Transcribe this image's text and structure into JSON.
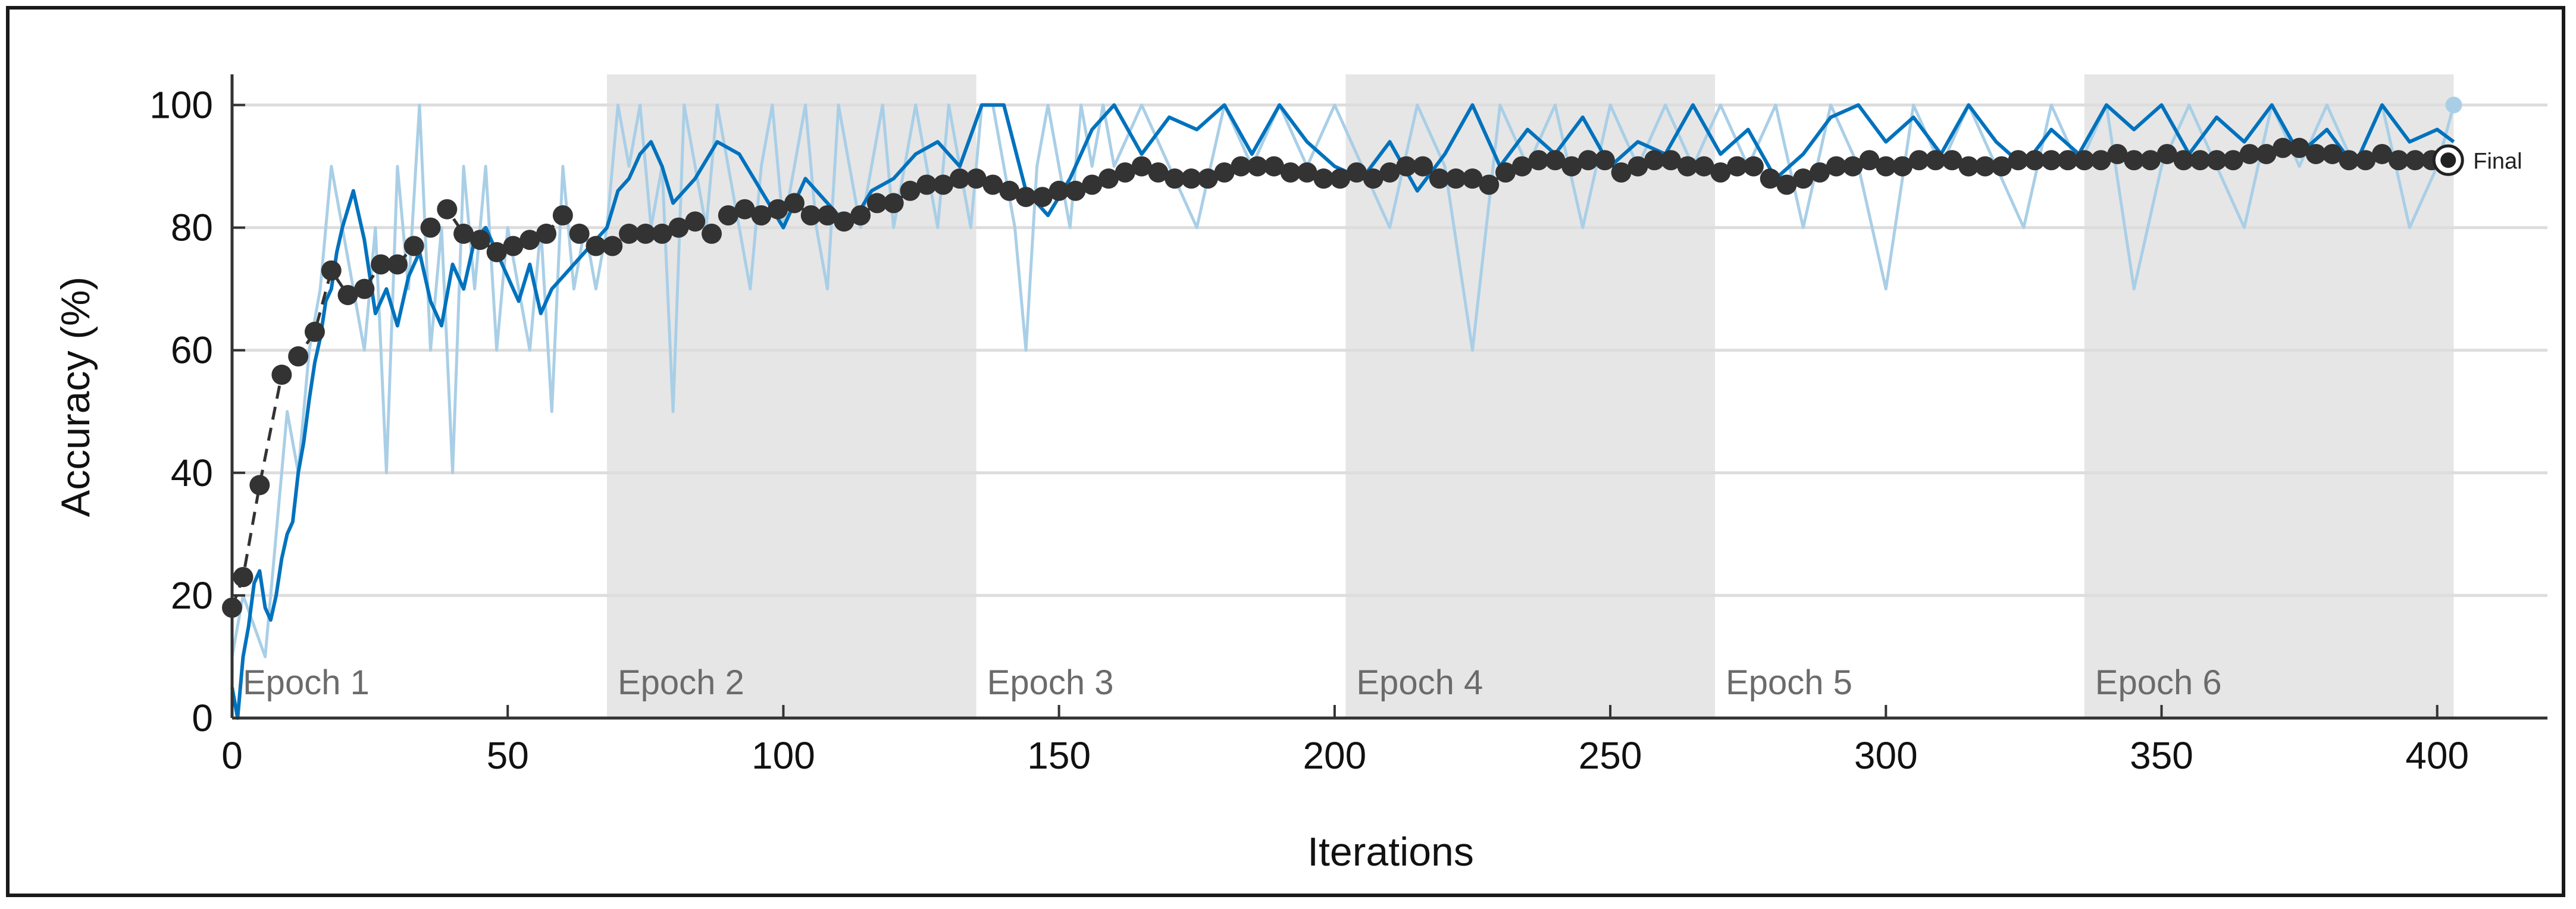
{
  "chart_data": {
    "type": "line",
    "xlabel": "Iterations",
    "ylabel": "Accuracy (%)",
    "xlim": [
      0,
      420
    ],
    "ylim": [
      0,
      105
    ],
    "xticks": [
      0,
      50,
      100,
      150,
      200,
      250,
      300,
      350,
      400
    ],
    "yticks": [
      0,
      20,
      40,
      60,
      80,
      100
    ],
    "grid": "horizontal",
    "epochs": [
      {
        "label": "Epoch 1",
        "start": 0,
        "end": 68,
        "shaded": false
      },
      {
        "label": "Epoch 2",
        "start": 68,
        "end": 135,
        "shaded": true
      },
      {
        "label": "Epoch 3",
        "start": 135,
        "end": 202,
        "shaded": false
      },
      {
        "label": "Epoch 4",
        "start": 202,
        "end": 269,
        "shaded": true
      },
      {
        "label": "Epoch 5",
        "start": 269,
        "end": 336,
        "shaded": false
      },
      {
        "label": "Epoch 6",
        "start": 336,
        "end": 403,
        "shaded": true
      }
    ],
    "final_label": "Final",
    "series": [
      {
        "role": "training-accuracy-raw",
        "color": "#a9cfe6",
        "x": [
          0,
          2,
          4,
          6,
          8,
          10,
          12,
          14,
          16,
          18,
          20,
          22,
          24,
          26,
          28,
          30,
          32,
          34,
          36,
          38,
          40,
          42,
          44,
          46,
          48,
          50,
          52,
          54,
          56,
          58,
          60,
          62,
          64,
          66,
          68,
          70,
          72,
          74,
          76,
          78,
          80,
          82,
          84,
          86,
          88,
          90,
          92,
          94,
          96,
          98,
          100,
          102,
          104,
          106,
          108,
          110,
          112,
          114,
          116,
          118,
          120,
          122,
          124,
          126,
          128,
          130,
          132,
          134,
          136,
          138,
          140,
          142,
          144,
          146,
          148,
          150,
          152,
          154,
          156,
          158,
          160,
          165,
          170,
          175,
          180,
          185,
          190,
          195,
          200,
          205,
          210,
          215,
          220,
          225,
          230,
          235,
          240,
          245,
          250,
          255,
          260,
          265,
          270,
          275,
          280,
          285,
          290,
          295,
          300,
          305,
          310,
          315,
          320,
          325,
          330,
          335,
          340,
          345,
          350,
          355,
          360,
          365,
          370,
          375,
          380,
          385,
          390,
          395,
          400,
          403
        ],
        "y": [
          10,
          20,
          15,
          10,
          30,
          50,
          40,
          60,
          70,
          90,
          80,
          70,
          60,
          80,
          40,
          90,
          70,
          100,
          60,
          80,
          40,
          90,
          70,
          90,
          60,
          80,
          70,
          60,
          80,
          50,
          90,
          70,
          80,
          70,
          80,
          100,
          90,
          100,
          80,
          90,
          50,
          100,
          90,
          80,
          100,
          90,
          80,
          70,
          90,
          100,
          80,
          90,
          100,
          80,
          70,
          100,
          90,
          80,
          90,
          100,
          80,
          90,
          100,
          90,
          80,
          100,
          90,
          80,
          100,
          100,
          90,
          80,
          60,
          90,
          100,
          90,
          80,
          100,
          90,
          100,
          90,
          100,
          90,
          80,
          100,
          90,
          100,
          90,
          100,
          90,
          80,
          100,
          90,
          60,
          100,
          90,
          100,
          80,
          100,
          90,
          100,
          90,
          100,
          90,
          100,
          80,
          100,
          90,
          70,
          100,
          90,
          100,
          90,
          80,
          100,
          90,
          100,
          70,
          90,
          100,
          90,
          80,
          100,
          90,
          100,
          90,
          100,
          80,
          90,
          100
        ]
      },
      {
        "role": "training-accuracy-smoothed",
        "color": "#0072bd",
        "x": [
          0,
          1,
          2,
          3,
          4,
          5,
          6,
          7,
          8,
          9,
          10,
          11,
          12,
          13,
          14,
          15,
          16,
          17,
          18,
          19,
          20,
          22,
          24,
          26,
          28,
          30,
          32,
          34,
          36,
          38,
          40,
          42,
          44,
          46,
          48,
          50,
          52,
          54,
          56,
          58,
          60,
          62,
          64,
          66,
          68,
          70,
          72,
          74,
          76,
          78,
          80,
          84,
          88,
          92,
          96,
          100,
          104,
          108,
          112,
          116,
          120,
          124,
          128,
          132,
          136,
          140,
          144,
          148,
          152,
          156,
          160,
          165,
          170,
          175,
          180,
          185,
          190,
          195,
          200,
          205,
          210,
          215,
          220,
          225,
          230,
          235,
          240,
          245,
          250,
          255,
          260,
          265,
          270,
          275,
          280,
          285,
          290,
          295,
          300,
          305,
          310,
          315,
          320,
          325,
          330,
          335,
          340,
          345,
          350,
          355,
          360,
          365,
          370,
          375,
          380,
          385,
          390,
          395,
          400,
          403
        ],
        "y": [
          5,
          0,
          10,
          15,
          22,
          24,
          18,
          16,
          20,
          26,
          30,
          32,
          40,
          45,
          52,
          58,
          62,
          68,
          70,
          76,
          80,
          86,
          78,
          66,
          70,
          64,
          72,
          76,
          68,
          64,
          74,
          70,
          78,
          80,
          76,
          72,
          68,
          74,
          66,
          70,
          72,
          74,
          76,
          78,
          80,
          86,
          88,
          92,
          94,
          90,
          84,
          88,
          94,
          92,
          86,
          80,
          88,
          84,
          80,
          86,
          88,
          92,
          94,
          90,
          100,
          100,
          86,
          82,
          88,
          96,
          100,
          92,
          98,
          96,
          100,
          92,
          100,
          94,
          90,
          88,
          94,
          86,
          92,
          100,
          90,
          96,
          92,
          98,
          90,
          94,
          92,
          100,
          92,
          96,
          88,
          92,
          98,
          100,
          94,
          98,
          92,
          100,
          94,
          90,
          96,
          92,
          100,
          96,
          100,
          92,
          98,
          94,
          100,
          92,
          96,
          90,
          100,
          94,
          96,
          94
        ]
      },
      {
        "role": "training-accuracy-averaged",
        "color": "#333333",
        "x": [
          0,
          2,
          5,
          9,
          12,
          15,
          18,
          21,
          24,
          27,
          30,
          33,
          36,
          39,
          42,
          45,
          48,
          51,
          54,
          57,
          60,
          63,
          66,
          69,
          72,
          75,
          78,
          81,
          84,
          87,
          90,
          93,
          96,
          99,
          102,
          105,
          108,
          111,
          114,
          117,
          120,
          123,
          126,
          129,
          132,
          135,
          138,
          141,
          144,
          147,
          150,
          153,
          156,
          159,
          162,
          165,
          168,
          171,
          174,
          177,
          180,
          183,
          186,
          189,
          192,
          195,
          198,
          201,
          204,
          207,
          210,
          213,
          216,
          219,
          222,
          225,
          228,
          231,
          234,
          237,
          240,
          243,
          246,
          249,
          252,
          255,
          258,
          261,
          264,
          267,
          270,
          273,
          276,
          279,
          282,
          285,
          288,
          291,
          294,
          297,
          300,
          303,
          306,
          309,
          312,
          315,
          318,
          321,
          324,
          327,
          330,
          333,
          336,
          339,
          342,
          345,
          348,
          351,
          354,
          357,
          360,
          363,
          366,
          369,
          372,
          375,
          378,
          381,
          384,
          387,
          390,
          393,
          396,
          399,
          402
        ],
        "y": [
          18,
          23,
          38,
          56,
          59,
          63,
          73,
          69,
          70,
          74,
          74,
          77,
          80,
          83,
          79,
          78,
          76,
          77,
          78,
          79,
          82,
          79,
          77,
          77,
          79,
          79,
          79,
          80,
          81,
          79,
          82,
          83,
          82,
          83,
          84,
          82,
          82,
          81,
          82,
          84,
          84,
          86,
          87,
          87,
          88,
          88,
          87,
          86,
          85,
          85,
          86,
          86,
          87,
          88,
          89,
          90,
          89,
          88,
          88,
          88,
          89,
          90,
          90,
          90,
          89,
          89,
          88,
          88,
          89,
          88,
          89,
          90,
          90,
          88,
          88,
          88,
          87,
          89,
          90,
          91,
          91,
          90,
          91,
          91,
          89,
          90,
          91,
          91,
          90,
          90,
          89,
          90,
          90,
          88,
          87,
          88,
          89,
          90,
          90,
          91,
          90,
          90,
          91,
          91,
          91,
          90,
          90,
          90,
          91,
          91,
          91,
          91,
          91,
          91,
          92,
          91,
          91,
          92,
          91,
          91,
          91,
          91,
          92,
          92,
          93,
          93,
          92,
          92,
          91,
          91,
          92,
          91,
          91,
          91,
          91
        ]
      }
    ]
  }
}
